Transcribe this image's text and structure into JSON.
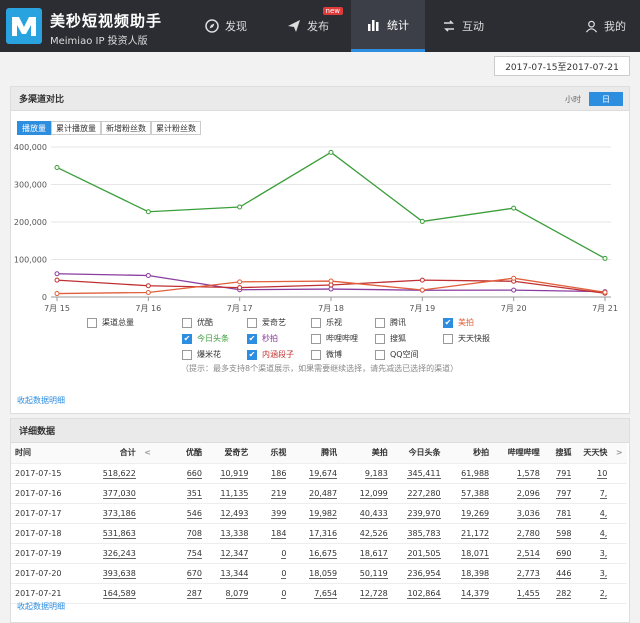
{
  "header": {
    "title": "美秒短视频助手",
    "subtitle": "Meimiao IP   投资人版",
    "nav": [
      {
        "label": "发现",
        "icon": "compass-icon"
      },
      {
        "label": "发布",
        "icon": "paper-plane-icon",
        "badge": "new"
      },
      {
        "label": "统计",
        "icon": "bar-chart-icon",
        "active": true
      },
      {
        "label": "互动",
        "icon": "exchange-icon"
      }
    ],
    "user": {
      "label": "我的",
      "icon": "user-icon"
    }
  },
  "date_range": "2017-07-15至2017-07-21",
  "channel_panel": {
    "title": "多渠道对比",
    "unit_hour": "小时",
    "unit_day": "日",
    "metric_tabs": [
      "播放量",
      "累计播放量",
      "新增粉丝数",
      "累计粉丝数"
    ],
    "checkboxes": [
      {
        "label": "渠道总量",
        "checked": false,
        "color": "#333333"
      },
      {
        "label": "优酷",
        "checked": false,
        "color": "#333333"
      },
      {
        "label": "爱奇艺",
        "checked": false,
        "color": "#333333"
      },
      {
        "label": "乐视",
        "checked": false,
        "color": "#333333"
      },
      {
        "label": "腾讯",
        "checked": false,
        "color": "#333333"
      },
      {
        "label": "美拍",
        "checked": true,
        "color": "#e0603b"
      },
      {
        "label": "今日头条",
        "checked": true,
        "color": "#3a9e3a"
      },
      {
        "label": "秒拍",
        "checked": true,
        "color": "#8a3ca0"
      },
      {
        "label": "哔哩哔哩",
        "checked": false,
        "color": "#333333"
      },
      {
        "label": "搜狐",
        "checked": false,
        "color": "#333333"
      },
      {
        "label": "天天快报",
        "checked": false,
        "color": "#333333"
      },
      {
        "label": "爆米花",
        "checked": false,
        "color": "#333333"
      },
      {
        "label": "内涵段子",
        "checked": true,
        "color": "#c03030"
      },
      {
        "label": "微博",
        "checked": false,
        "color": "#333333"
      },
      {
        "label": "QQ空间",
        "checked": false,
        "color": "#333333"
      }
    ],
    "hint": "（提示：最多支持8个渠道展示，如果需要继续选择，请先减选已选择的渠道）",
    "collapse_label": "收起数据明细"
  },
  "chart_data": {
    "type": "line",
    "x": [
      "7月 15",
      "7月 16",
      "7月 17",
      "7月 18",
      "7月 19",
      "7月 20",
      "7月 21"
    ],
    "y_ticks": [
      "0",
      "100,000",
      "200,000",
      "300,000",
      "400,000"
    ],
    "ylim": [
      0,
      400000
    ],
    "series": [
      {
        "name": "今日头条",
        "color": "#3a9e3a",
        "values": [
          345411,
          227280,
          239970,
          385783,
          201505,
          236954,
          102864
        ]
      },
      {
        "name": "秒拍",
        "color": "#8a3ca0",
        "values": [
          61988,
          57388,
          19269,
          21172,
          18071,
          18398,
          14379
        ]
      },
      {
        "name": "内涵段子",
        "color": "#c03030",
        "values": [
          45000,
          30000,
          25000,
          32000,
          45000,
          42000,
          10000
        ]
      },
      {
        "name": "美拍",
        "color": "#e0603b",
        "values": [
          9183,
          12099,
          40433,
          42526,
          18617,
          50119,
          12728
        ]
      }
    ]
  },
  "detail_panel": {
    "title": "详细数据",
    "columns": [
      "时间",
      "合计",
      "<",
      "优酷",
      "爱奇艺",
      "乐视",
      "腾讯",
      "美拍",
      "今日头条",
      "秒拍",
      "哔哩哔哩",
      "搜狐",
      "天天快",
      ">"
    ],
    "rows": [
      [
        "2017-07-15",
        "518,622",
        "660",
        "10,919",
        "186",
        "19,674",
        "9,183",
        "345,411",
        "61,988",
        "1,578",
        "791",
        "10"
      ],
      [
        "2017-07-16",
        "377,030",
        "351",
        "11,135",
        "219",
        "20,487",
        "12,099",
        "227,280",
        "57,388",
        "2,096",
        "797",
        "7,"
      ],
      [
        "2017-07-17",
        "373,186",
        "546",
        "12,493",
        "399",
        "19,982",
        "40,433",
        "239,970",
        "19,269",
        "3,036",
        "781",
        "4,"
      ],
      [
        "2017-07-18",
        "531,863",
        "708",
        "13,338",
        "184",
        "17,316",
        "42,526",
        "385,783",
        "21,172",
        "2,780",
        "598",
        "4,"
      ],
      [
        "2017-07-19",
        "326,243",
        "754",
        "12,347",
        "0",
        "16,675",
        "18,617",
        "201,505",
        "18,071",
        "2,514",
        "690",
        "3,"
      ],
      [
        "2017-07-20",
        "393,638",
        "670",
        "13,344",
        "0",
        "18,059",
        "50,119",
        "236,954",
        "18,398",
        "2,773",
        "446",
        "3,"
      ],
      [
        "2017-07-21",
        "164,589",
        "287",
        "8,079",
        "0",
        "7,654",
        "12,728",
        "102,864",
        "14,379",
        "1,455",
        "282",
        "2,"
      ]
    ],
    "collapse_label": "收起数据明细"
  }
}
